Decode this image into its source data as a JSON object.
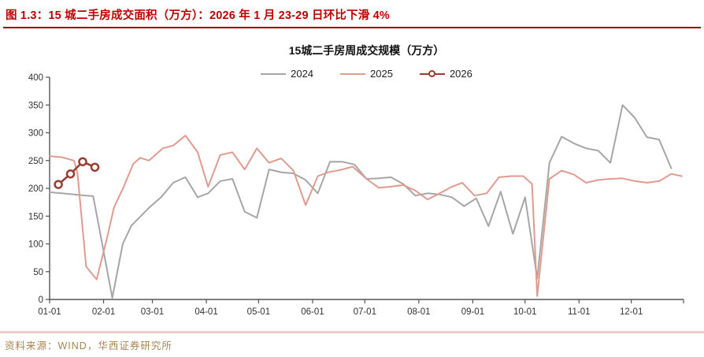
{
  "header": {
    "title": "图 1.3：15 城二手房成交面积（万方）：2026 年 1 月 23-29 日环比下滑 4%"
  },
  "chart": {
    "title": "15城二手房周成交规模（万方）"
  },
  "footer": {
    "source": "资料来源：WIND，华西证券研究所"
  },
  "colors": {
    "header_text": "#c00000",
    "header_rule": "#990000",
    "axis": "#555555",
    "tick_text": "#333333",
    "series_2024": "#a6a6a6",
    "series_2025": "#e19b8e",
    "series_2026": "#9e3a2e",
    "footer_rule": "#eecfc8",
    "source_text": "#a9854f"
  },
  "chart_data": {
    "type": "line",
    "title": "15城二手房周成交规模（万方）",
    "xlabel": "",
    "ylabel": "",
    "grid": false,
    "legend_position": "top-center",
    "x_axis": {
      "kind": "day-of-year",
      "domain": [
        1,
        365
      ],
      "tick_days": [
        1,
        32,
        60,
        91,
        121,
        152,
        182,
        213,
        244,
        274,
        305,
        335
      ],
      "tick_labels": [
        "01-01",
        "02-01",
        "03-01",
        "04-01",
        "05-01",
        "06-01",
        "07-01",
        "08-01",
        "09-01",
        "10-01",
        "11-01",
        "12-01"
      ],
      "end_tick_day": 365
    },
    "y_axis": {
      "min": 0,
      "max": 400,
      "tick_step": 50,
      "ticks": [
        0,
        50,
        100,
        150,
        200,
        250,
        300,
        350,
        400
      ]
    },
    "series": [
      {
        "name": "2024",
        "color": "#a6a6a6",
        "marker": "none",
        "stroke_width": 2,
        "points": [
          [
            1,
            193
          ],
          [
            8,
            191
          ],
          [
            15,
            189
          ],
          [
            22,
            187
          ],
          [
            26,
            186
          ],
          [
            31,
            104
          ],
          [
            37,
            3
          ],
          [
            43,
            100
          ],
          [
            48,
            133
          ],
          [
            54,
            152
          ],
          [
            58,
            165
          ],
          [
            65,
            184
          ],
          [
            72,
            210
          ],
          [
            79,
            220
          ],
          [
            86,
            184
          ],
          [
            92,
            191
          ],
          [
            99,
            213
          ],
          [
            106,
            217
          ],
          [
            113,
            158
          ],
          [
            120,
            147
          ],
          [
            127,
            234
          ],
          [
            134,
            229
          ],
          [
            141,
            227
          ],
          [
            148,
            215
          ],
          [
            155,
            191
          ],
          [
            162,
            248
          ],
          [
            169,
            248
          ],
          [
            176,
            243
          ],
          [
            183,
            217
          ],
          [
            190,
            218
          ],
          [
            197,
            220
          ],
          [
            204,
            208
          ],
          [
            211,
            187
          ],
          [
            218,
            191
          ],
          [
            225,
            189
          ],
          [
            232,
            184
          ],
          [
            239,
            168
          ],
          [
            246,
            182
          ],
          [
            253,
            132
          ],
          [
            260,
            194
          ],
          [
            267,
            118
          ],
          [
            274,
            184
          ],
          [
            281,
            38
          ],
          [
            288,
            246
          ],
          [
            295,
            293
          ],
          [
            302,
            281
          ],
          [
            309,
            272
          ],
          [
            316,
            268
          ],
          [
            323,
            246
          ],
          [
            330,
            350
          ],
          [
            337,
            327
          ],
          [
            344,
            292
          ],
          [
            351,
            288
          ],
          [
            358,
            236
          ]
        ]
      },
      {
        "name": "2025",
        "color": "#e19b8e",
        "marker": "none",
        "stroke_width": 2,
        "points": [
          [
            1,
            258
          ],
          [
            8,
            256
          ],
          [
            15,
            250
          ],
          [
            17,
            227
          ],
          [
            22,
            59
          ],
          [
            28,
            36
          ],
          [
            34,
            111
          ],
          [
            38,
            166
          ],
          [
            43,
            199
          ],
          [
            49,
            244
          ],
          [
            53,
            255
          ],
          [
            58,
            250
          ],
          [
            66,
            272
          ],
          [
            72,
            277
          ],
          [
            79,
            295
          ],
          [
            86,
            265
          ],
          [
            92,
            203
          ],
          [
            99,
            260
          ],
          [
            106,
            265
          ],
          [
            113,
            234
          ],
          [
            120,
            272
          ],
          [
            127,
            246
          ],
          [
            134,
            254
          ],
          [
            141,
            232
          ],
          [
            148,
            170
          ],
          [
            155,
            222
          ],
          [
            161,
            229
          ],
          [
            168,
            233
          ],
          [
            175,
            239
          ],
          [
            183,
            217
          ],
          [
            190,
            201
          ],
          [
            197,
            203
          ],
          [
            204,
            206
          ],
          [
            211,
            196
          ],
          [
            218,
            180
          ],
          [
            225,
            191
          ],
          [
            232,
            203
          ],
          [
            238,
            210
          ],
          [
            245,
            187
          ],
          [
            252,
            191
          ],
          [
            259,
            220
          ],
          [
            266,
            222
          ],
          [
            273,
            222
          ],
          [
            278,
            208
          ],
          [
            281,
            6
          ],
          [
            288,
            217
          ],
          [
            295,
            232
          ],
          [
            302,
            225
          ],
          [
            309,
            210
          ],
          [
            316,
            215
          ],
          [
            323,
            217
          ],
          [
            330,
            218
          ],
          [
            337,
            213
          ],
          [
            344,
            210
          ],
          [
            351,
            213
          ],
          [
            358,
            226
          ],
          [
            364,
            222
          ]
        ]
      },
      {
        "name": "2026",
        "color": "#9e3a2e",
        "marker": "circle",
        "stroke_width": 2.5,
        "points": [
          [
            6,
            207
          ],
          [
            13,
            226
          ],
          [
            20,
            248
          ],
          [
            27,
            238
          ]
        ]
      }
    ]
  }
}
